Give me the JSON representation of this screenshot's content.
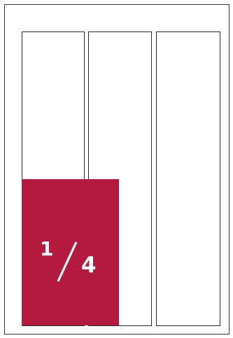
{
  "page": {
    "background_color": "#ffffff",
    "border_color": "#3a3a3a"
  },
  "columns": {
    "count": 3,
    "border_color": "#2a2a2a"
  },
  "highlight": {
    "color": "#b41a3e",
    "text_color": "#ffffff",
    "fraction": {
      "numerator": "1",
      "denominator": "4"
    }
  }
}
